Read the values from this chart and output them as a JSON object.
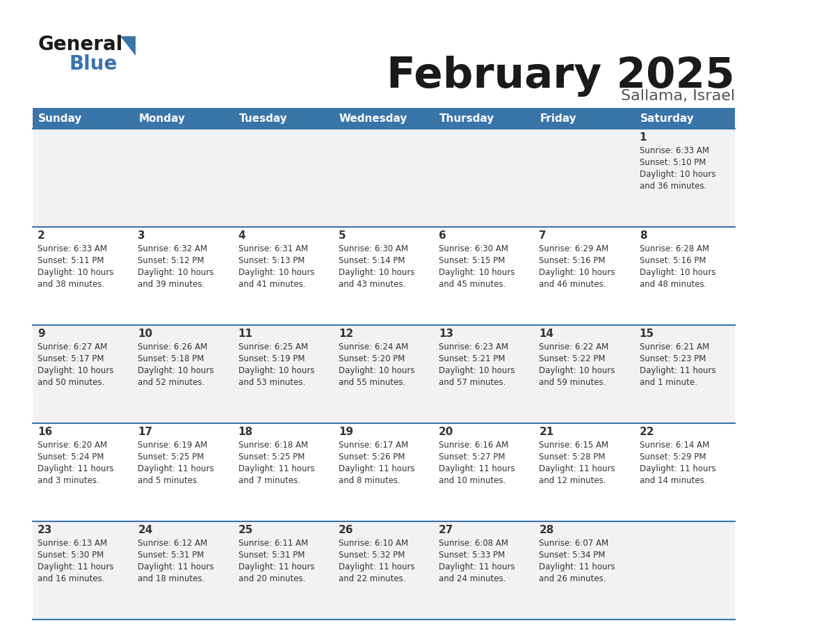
{
  "title": "February 2025",
  "subtitle": "Sallama, Israel",
  "header_color": "#3A75AA",
  "header_text_color": "#FFFFFF",
  "day_names": [
    "Sunday",
    "Monday",
    "Tuesday",
    "Wednesday",
    "Thursday",
    "Friday",
    "Saturday"
  ],
  "bg_color": "#FFFFFF",
  "cell_bg_row0": "#F2F2F2",
  "cell_bg_row1": "#FFFFFF",
  "cell_bg_row2": "#F2F2F2",
  "cell_bg_row3": "#FFFFFF",
  "cell_bg_row4": "#F2F2F2",
  "row_line_color": "#3A75AA",
  "text_color": "#333333",
  "title_color": "#1a1a1a",
  "subtitle_color": "#555555",
  "days": [
    {
      "day": 1,
      "col": 6,
      "row": 0,
      "sunrise": "6:33 AM",
      "sunset": "5:10 PM",
      "daylight": "10 hours and 36 minutes"
    },
    {
      "day": 2,
      "col": 0,
      "row": 1,
      "sunrise": "6:33 AM",
      "sunset": "5:11 PM",
      "daylight": "10 hours and 38 minutes"
    },
    {
      "day": 3,
      "col": 1,
      "row": 1,
      "sunrise": "6:32 AM",
      "sunset": "5:12 PM",
      "daylight": "10 hours and 39 minutes"
    },
    {
      "day": 4,
      "col": 2,
      "row": 1,
      "sunrise": "6:31 AM",
      "sunset": "5:13 PM",
      "daylight": "10 hours and 41 minutes"
    },
    {
      "day": 5,
      "col": 3,
      "row": 1,
      "sunrise": "6:30 AM",
      "sunset": "5:14 PM",
      "daylight": "10 hours and 43 minutes"
    },
    {
      "day": 6,
      "col": 4,
      "row": 1,
      "sunrise": "6:30 AM",
      "sunset": "5:15 PM",
      "daylight": "10 hours and 45 minutes"
    },
    {
      "day": 7,
      "col": 5,
      "row": 1,
      "sunrise": "6:29 AM",
      "sunset": "5:16 PM",
      "daylight": "10 hours and 46 minutes"
    },
    {
      "day": 8,
      "col": 6,
      "row": 1,
      "sunrise": "6:28 AM",
      "sunset": "5:16 PM",
      "daylight": "10 hours and 48 minutes"
    },
    {
      "day": 9,
      "col": 0,
      "row": 2,
      "sunrise": "6:27 AM",
      "sunset": "5:17 PM",
      "daylight": "10 hours and 50 minutes"
    },
    {
      "day": 10,
      "col": 1,
      "row": 2,
      "sunrise": "6:26 AM",
      "sunset": "5:18 PM",
      "daylight": "10 hours and 52 minutes"
    },
    {
      "day": 11,
      "col": 2,
      "row": 2,
      "sunrise": "6:25 AM",
      "sunset": "5:19 PM",
      "daylight": "10 hours and 53 minutes"
    },
    {
      "day": 12,
      "col": 3,
      "row": 2,
      "sunrise": "6:24 AM",
      "sunset": "5:20 PM",
      "daylight": "10 hours and 55 minutes"
    },
    {
      "day": 13,
      "col": 4,
      "row": 2,
      "sunrise": "6:23 AM",
      "sunset": "5:21 PM",
      "daylight": "10 hours and 57 minutes"
    },
    {
      "day": 14,
      "col": 5,
      "row": 2,
      "sunrise": "6:22 AM",
      "sunset": "5:22 PM",
      "daylight": "10 hours and 59 minutes"
    },
    {
      "day": 15,
      "col": 6,
      "row": 2,
      "sunrise": "6:21 AM",
      "sunset": "5:23 PM",
      "daylight": "11 hours and 1 minute"
    },
    {
      "day": 16,
      "col": 0,
      "row": 3,
      "sunrise": "6:20 AM",
      "sunset": "5:24 PM",
      "daylight": "11 hours and 3 minutes"
    },
    {
      "day": 17,
      "col": 1,
      "row": 3,
      "sunrise": "6:19 AM",
      "sunset": "5:25 PM",
      "daylight": "11 hours and 5 minutes"
    },
    {
      "day": 18,
      "col": 2,
      "row": 3,
      "sunrise": "6:18 AM",
      "sunset": "5:25 PM",
      "daylight": "11 hours and 7 minutes"
    },
    {
      "day": 19,
      "col": 3,
      "row": 3,
      "sunrise": "6:17 AM",
      "sunset": "5:26 PM",
      "daylight": "11 hours and 8 minutes"
    },
    {
      "day": 20,
      "col": 4,
      "row": 3,
      "sunrise": "6:16 AM",
      "sunset": "5:27 PM",
      "daylight": "11 hours and 10 minutes"
    },
    {
      "day": 21,
      "col": 5,
      "row": 3,
      "sunrise": "6:15 AM",
      "sunset": "5:28 PM",
      "daylight": "11 hours and 12 minutes"
    },
    {
      "day": 22,
      "col": 6,
      "row": 3,
      "sunrise": "6:14 AM",
      "sunset": "5:29 PM",
      "daylight": "11 hours and 14 minutes"
    },
    {
      "day": 23,
      "col": 0,
      "row": 4,
      "sunrise": "6:13 AM",
      "sunset": "5:30 PM",
      "daylight": "11 hours and 16 minutes"
    },
    {
      "day": 24,
      "col": 1,
      "row": 4,
      "sunrise": "6:12 AM",
      "sunset": "5:31 PM",
      "daylight": "11 hours and 18 minutes"
    },
    {
      "day": 25,
      "col": 2,
      "row": 4,
      "sunrise": "6:11 AM",
      "sunset": "5:31 PM",
      "daylight": "11 hours and 20 minutes"
    },
    {
      "day": 26,
      "col": 3,
      "row": 4,
      "sunrise": "6:10 AM",
      "sunset": "5:32 PM",
      "daylight": "11 hours and 22 minutes"
    },
    {
      "day": 27,
      "col": 4,
      "row": 4,
      "sunrise": "6:08 AM",
      "sunset": "5:33 PM",
      "daylight": "11 hours and 24 minutes"
    },
    {
      "day": 28,
      "col": 5,
      "row": 4,
      "sunrise": "6:07 AM",
      "sunset": "5:34 PM",
      "daylight": "11 hours and 26 minutes"
    }
  ],
  "logo_text1": "General",
  "logo_text2": "Blue",
  "logo_color1": "#1a1a1a",
  "logo_color2": "#3A75AA",
  "logo_triangle_color": "#3A75AA",
  "figwidth": 11.88,
  "figheight": 9.18,
  "dpi": 100
}
